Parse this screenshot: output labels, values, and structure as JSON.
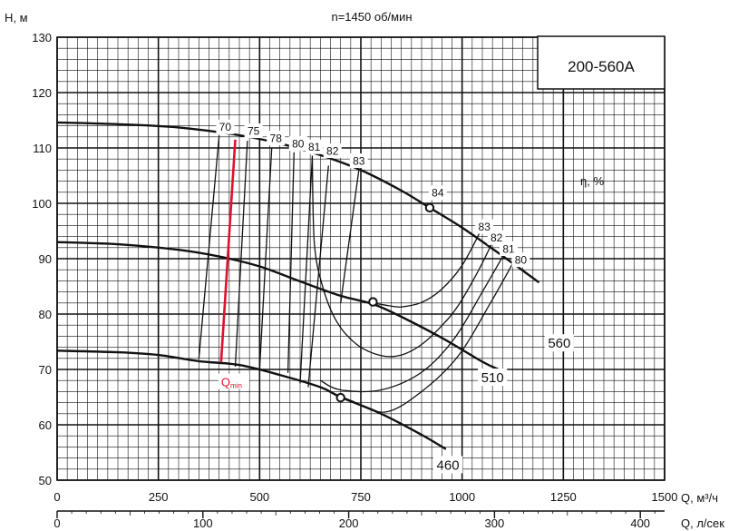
{
  "chart_data": {
    "type": "line",
    "title": "n=1450 об/мин",
    "model": "200-560A",
    "ylabel": "H, м",
    "xlabel": "Q, м³/ч",
    "xlabel2": "Q, л/сек",
    "eta_label": "η, %",
    "qmin_label": "Q",
    "qmin_sub": "min",
    "xlim": [
      0,
      1500
    ],
    "ylim": [
      50,
      130
    ],
    "x_ticks": [
      "0",
      "250",
      "500",
      "750",
      "1000",
      "1250",
      "1500"
    ],
    "y_ticks": [
      "50",
      "60",
      "70",
      "80",
      "90",
      "100",
      "110",
      "120",
      "130"
    ],
    "x2_ticks": [
      "0",
      "100",
      "200",
      "300",
      "400"
    ],
    "x2_ratio": 3.6,
    "colors": {
      "curve": "#111111",
      "grid": "#111111",
      "qmin": "#e0102e"
    },
    "series": [
      {
        "name": "560",
        "label_q": 1240,
        "label_h": 74.8,
        "points": [
          [
            0,
            114.6
          ],
          [
            150,
            114.3
          ],
          [
            300,
            113.7
          ],
          [
            450,
            112.3
          ],
          [
            550,
            110.8
          ],
          [
            650,
            108.7
          ],
          [
            750,
            106.0
          ],
          [
            850,
            102.3
          ],
          [
            920,
            99.2
          ],
          [
            1000,
            95.6
          ],
          [
            1100,
            90.5
          ],
          [
            1190,
            85.7
          ]
        ]
      },
      {
        "name": "510",
        "label_q": 1075,
        "label_h": 68.6,
        "points": [
          [
            0,
            93.0
          ],
          [
            150,
            92.6
          ],
          [
            300,
            91.6
          ],
          [
            400,
            90.4
          ],
          [
            500,
            88.6
          ],
          [
            600,
            85.9
          ],
          [
            700,
            83.3
          ],
          [
            780,
            81.8
          ],
          [
            850,
            79.5
          ],
          [
            950,
            75.7
          ],
          [
            1050,
            71.4
          ],
          [
            1090,
            70.0
          ]
        ]
      },
      {
        "name": "460",
        "label_q": 965,
        "label_h": 52.8,
        "points": [
          [
            0,
            73.4
          ],
          [
            150,
            73.1
          ],
          [
            250,
            72.6
          ],
          [
            350,
            71.5
          ],
          [
            450,
            70.8
          ],
          [
            550,
            69.0
          ],
          [
            650,
            66.8
          ],
          [
            700,
            65.0
          ],
          [
            800,
            62.0
          ],
          [
            900,
            58.2
          ],
          [
            960,
            55.6
          ]
        ]
      }
    ],
    "efficiency_lines": [
      {
        "eta": "70",
        "points": [
          [
            400,
            112.2
          ],
          [
            350,
            71.9
          ]
        ],
        "label_q": 415,
        "label_h": 113.8
      },
      {
        "eta": "75",
        "points": [
          [
            470,
            111.3
          ],
          [
            440,
            70.5
          ]
        ],
        "label_q": 485,
        "label_h": 113.1
      },
      {
        "eta": "78",
        "points": [
          [
            530,
            110.0
          ],
          [
            500,
            69.9
          ]
        ],
        "label_q": 540,
        "label_h": 111.8
      },
      {
        "eta": "80",
        "points": [
          [
            585,
            109.2
          ],
          [
            570,
            69.4
          ]
        ],
        "label_q": 595,
        "label_h": 110.8
      },
      {
        "eta": "81",
        "points": [
          [
            630,
            108.3
          ],
          [
            600,
            67.5
          ]
        ],
        "label_q": 635,
        "label_h": 110.2
      },
      {
        "eta": "82",
        "points": [
          [
            670,
            106.8
          ],
          [
            620,
            66.8
          ]
        ],
        "label_q": 680,
        "label_h": 109.5
      },
      {
        "eta": "83",
        "points": [
          [
            745,
            106.0
          ],
          [
            700,
            82.0
          ]
        ],
        "label_q": 745,
        "label_h": 107.7
      }
    ],
    "efficiency_loops": [
      {
        "eta": "83",
        "label_q": 1055,
        "label_h": 95.8,
        "points": [
          [
            1045,
            94.9
          ],
          [
            1000,
            88.8
          ],
          [
            950,
            84.5
          ],
          [
            900,
            82.1
          ],
          [
            850,
            81.3
          ],
          [
            820,
            81.5
          ],
          [
            780,
            82.0
          ]
        ]
      },
      {
        "eta": "82",
        "label_q": 1085,
        "label_h": 93.8,
        "points": [
          [
            1075,
            93.0
          ],
          [
            1040,
            87.8
          ],
          [
            990,
            81.5
          ],
          [
            950,
            77.9
          ],
          [
            900,
            74.5
          ],
          [
            850,
            72.6
          ],
          [
            800,
            72.5
          ],
          [
            740,
            74.5
          ],
          [
            690,
            78.7
          ],
          [
            655,
            85.1
          ],
          [
            635,
            93.0
          ],
          [
            630,
            108.6
          ]
        ]
      },
      {
        "eta": "81",
        "label_q": 1115,
        "label_h": 91.8,
        "points": [
          [
            1105,
            91.0
          ],
          [
            1050,
            84.0
          ],
          [
            980,
            75.5
          ],
          [
            900,
            69.5
          ],
          [
            800,
            66.3
          ],
          [
            700,
            66.3
          ],
          [
            650,
            68.0
          ]
        ]
      },
      {
        "eta": "80",
        "label_q": 1145,
        "label_h": 89.8,
        "points": [
          [
            1130,
            89.8
          ],
          [
            1070,
            82.0
          ],
          [
            990,
            72.4
          ],
          [
            900,
            66.0
          ],
          [
            810,
            62.3
          ],
          [
            725,
            64.4
          ],
          [
            700,
            65.2
          ]
        ]
      }
    ],
    "qmin_line": {
      "points": [
        [
          440,
          111.5
        ],
        [
          405,
          71.4
        ]
      ],
      "label_q": 405,
      "label_h": 67.6
    },
    "duty_points": [
      [
        920,
        99.2
      ],
      [
        780,
        82.2
      ],
      [
        700,
        64.9
      ]
    ]
  }
}
